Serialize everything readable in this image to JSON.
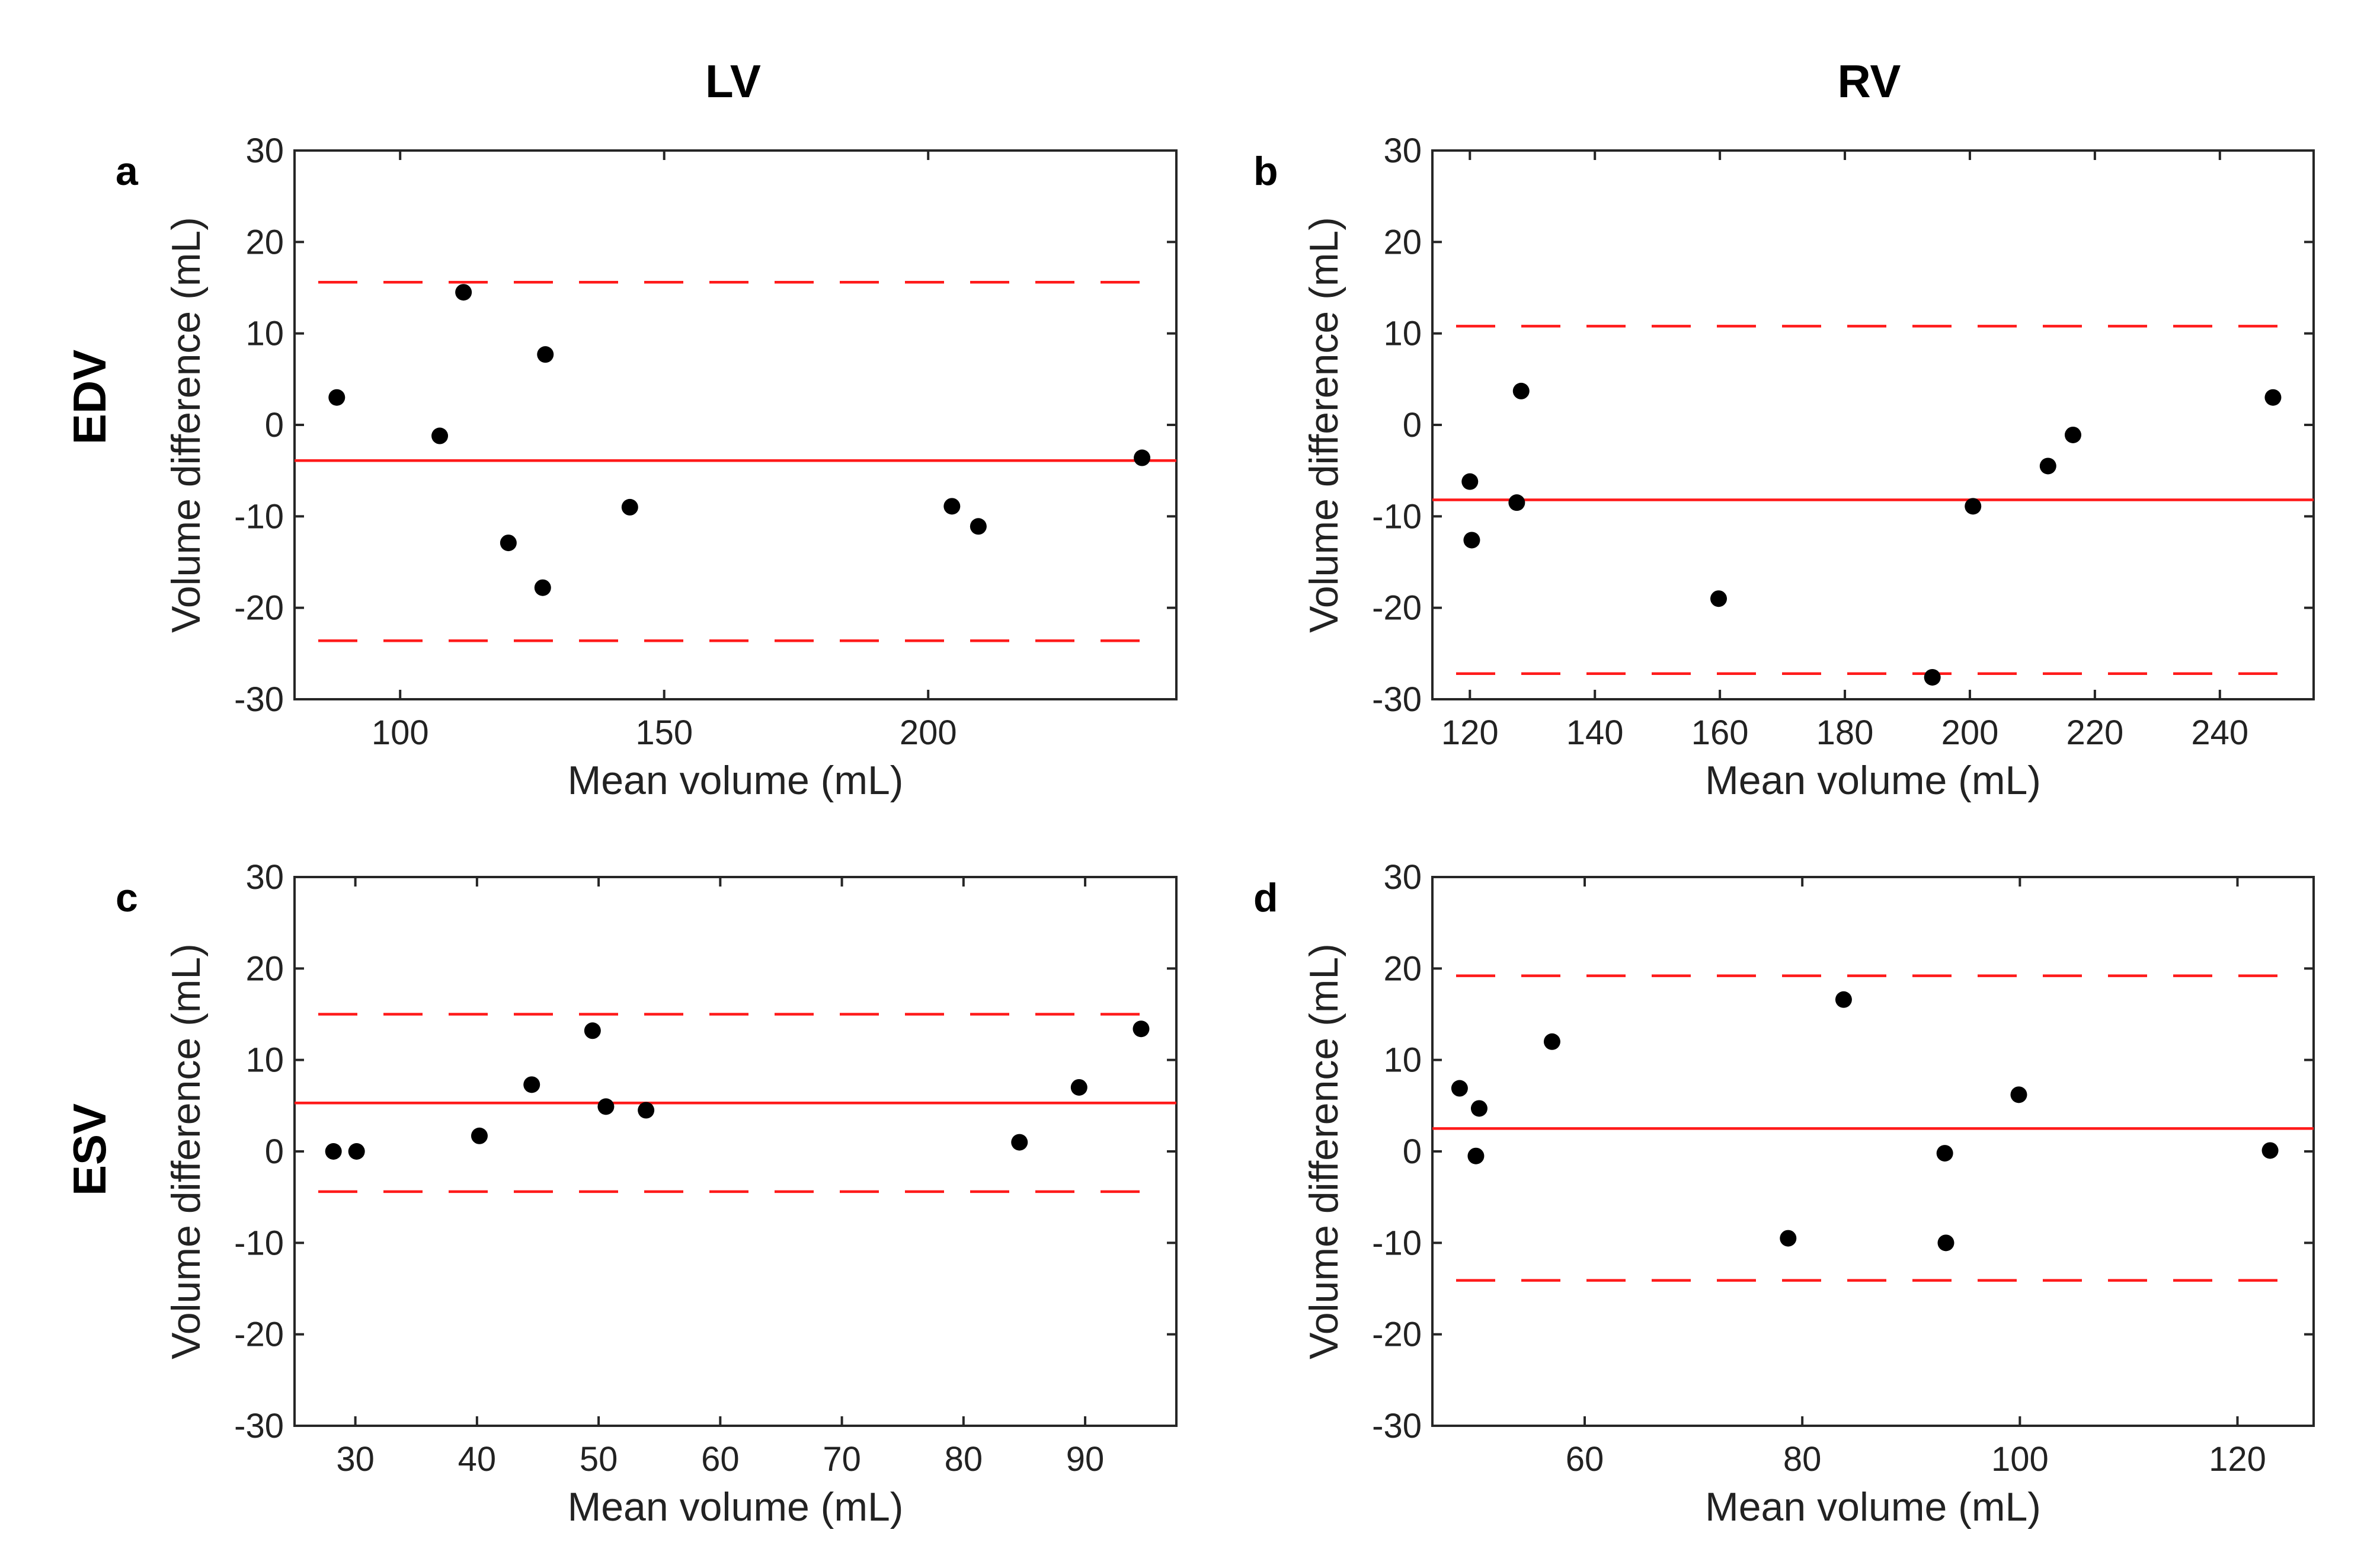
{
  "figure": {
    "column_headers": [
      "LV",
      "RV"
    ],
    "row_headers": [
      "EDV",
      "ESV"
    ]
  },
  "chart_data": [
    {
      "panel": "a",
      "type": "scatter",
      "xlabel": "Mean volume (mL)",
      "ylabel": "Volume difference (mL)",
      "xlim": [
        80,
        247
      ],
      "ylim": [
        -30,
        30
      ],
      "xticks": [
        100,
        150,
        200
      ],
      "yticks": [
        -30,
        -20,
        -10,
        0,
        10,
        20,
        30
      ],
      "mean_difference": -3.9,
      "limits_of_agreement": [
        -23.6,
        15.6
      ],
      "points": [
        {
          "x": 88,
          "y": 3.0
        },
        {
          "x": 107.5,
          "y": -1.2
        },
        {
          "x": 112,
          "y": 14.5
        },
        {
          "x": 120.5,
          "y": -12.9
        },
        {
          "x": 127,
          "y": -17.8
        },
        {
          "x": 127.5,
          "y": 7.7
        },
        {
          "x": 143.5,
          "y": -9.0
        },
        {
          "x": 204.5,
          "y": -8.9
        },
        {
          "x": 209.5,
          "y": -11.1
        },
        {
          "x": 240.5,
          "y": -3.6
        }
      ]
    },
    {
      "panel": "b",
      "type": "scatter",
      "xlabel": "Mean volume (mL)",
      "ylabel": "Volume difference (mL)",
      "xlim": [
        114,
        255
      ],
      "ylim": [
        -30,
        30
      ],
      "xticks": [
        120,
        140,
        160,
        180,
        200,
        220,
        240
      ],
      "yticks": [
        -30,
        -20,
        -10,
        0,
        10,
        20,
        30
      ],
      "mean_difference": -8.2,
      "limits_of_agreement": [
        -27.2,
        10.8
      ],
      "points": [
        {
          "x": 120,
          "y": -6.2
        },
        {
          "x": 120.3,
          "y": -12.6
        },
        {
          "x": 127.5,
          "y": -8.5
        },
        {
          "x": 128.2,
          "y": 3.7
        },
        {
          "x": 159.8,
          "y": -19.0
        },
        {
          "x": 194,
          "y": -27.6
        },
        {
          "x": 200.5,
          "y": -8.9
        },
        {
          "x": 212.5,
          "y": -4.5
        },
        {
          "x": 216.5,
          "y": -1.1
        },
        {
          "x": 248.5,
          "y": 3.0
        }
      ]
    },
    {
      "panel": "c",
      "type": "scatter",
      "xlabel": "Mean volume (mL)",
      "ylabel": "Volume difference (mL)",
      "xlim": [
        25,
        97.5
      ],
      "ylim": [
        -30,
        30
      ],
      "xticks": [
        30,
        40,
        50,
        60,
        70,
        80,
        90
      ],
      "yticks": [
        -30,
        -20,
        -10,
        0,
        10,
        20,
        30
      ],
      "mean_difference": 5.3,
      "limits_of_agreement": [
        -4.4,
        15.0
      ],
      "points": [
        {
          "x": 28.2,
          "y": 0.0
        },
        {
          "x": 30.1,
          "y": 0.0
        },
        {
          "x": 40.2,
          "y": 1.7
        },
        {
          "x": 44.5,
          "y": 7.3
        },
        {
          "x": 49.5,
          "y": 13.2
        },
        {
          "x": 50.6,
          "y": 4.9
        },
        {
          "x": 53.9,
          "y": 4.5
        },
        {
          "x": 84.6,
          "y": 1.0
        },
        {
          "x": 89.5,
          "y": 7.0
        },
        {
          "x": 94.6,
          "y": 13.4
        }
      ]
    },
    {
      "panel": "d",
      "type": "scatter",
      "xlabel": "Mean volume (mL)",
      "ylabel": "Volume difference (mL)",
      "xlim": [
        46,
        127
      ],
      "ylim": [
        -30,
        30
      ],
      "xticks": [
        60,
        80,
        100,
        120
      ],
      "yticks": [
        -30,
        -20,
        -10,
        0,
        10,
        20,
        30
      ],
      "mean_difference": 2.5,
      "limits_of_agreement": [
        -14.1,
        19.2
      ],
      "points": [
        {
          "x": 48.5,
          "y": 6.9
        },
        {
          "x": 50,
          "y": -0.5
        },
        {
          "x": 50.3,
          "y": 4.7
        },
        {
          "x": 57,
          "y": 12.0
        },
        {
          "x": 78.7,
          "y": -9.5
        },
        {
          "x": 83.8,
          "y": 16.6
        },
        {
          "x": 93.1,
          "y": -0.2
        },
        {
          "x": 93.2,
          "y": -10.0
        },
        {
          "x": 99.9,
          "y": 6.2
        },
        {
          "x": 123,
          "y": 0.1
        }
      ]
    }
  ]
}
